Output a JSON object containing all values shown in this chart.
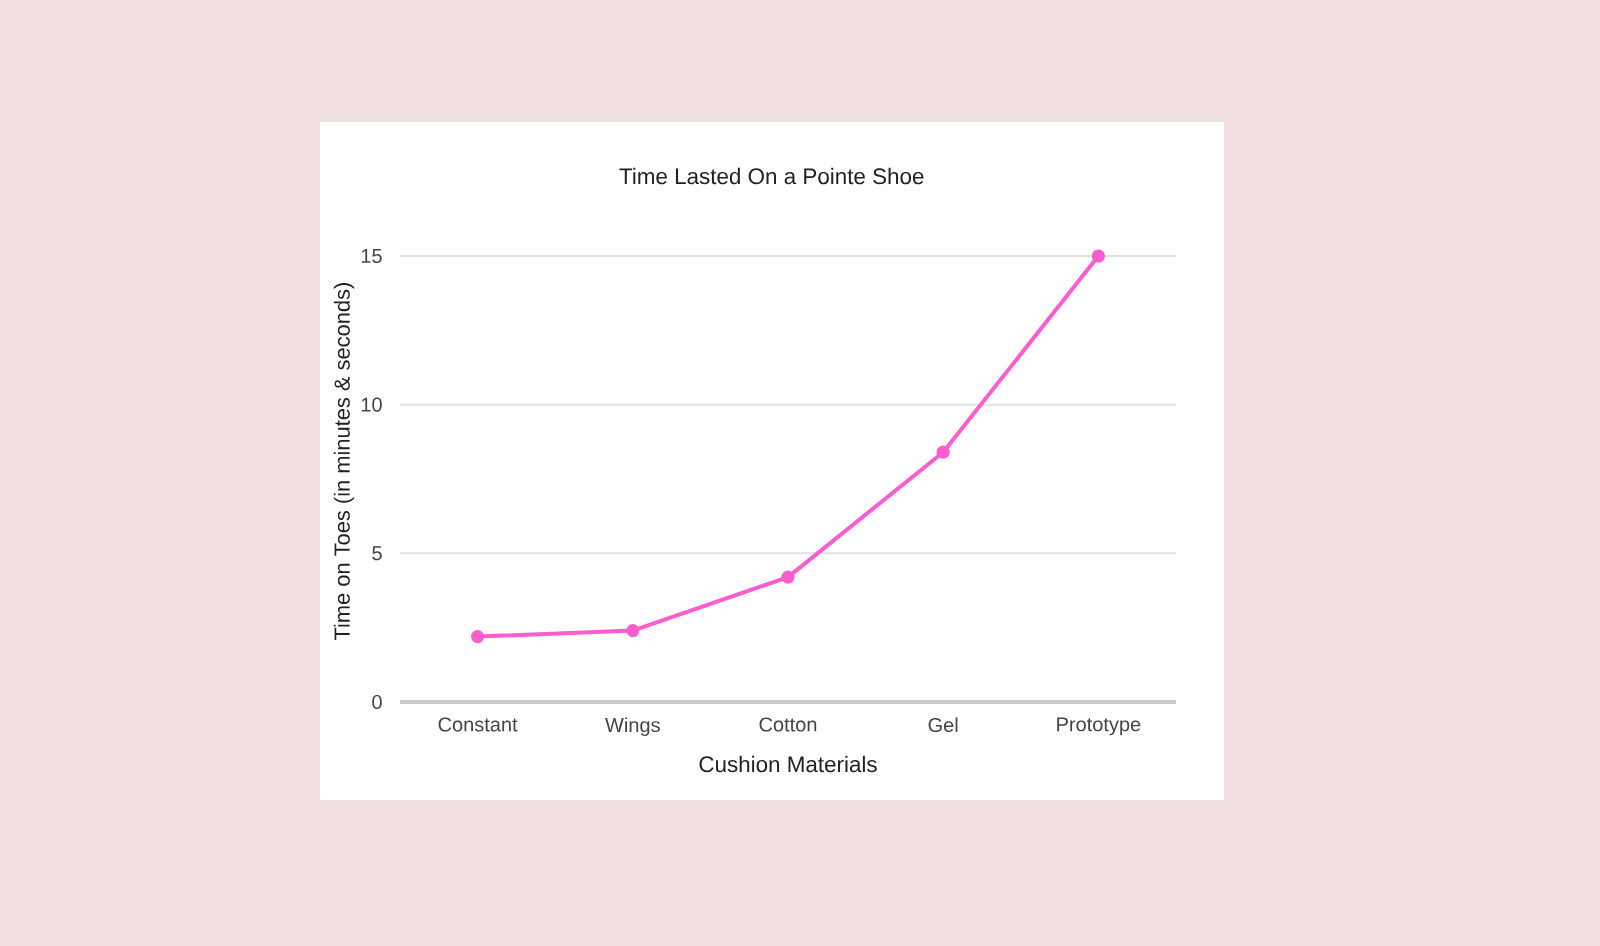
{
  "chart_data": {
    "type": "line",
    "title": "Time Lasted On a Pointe Shoe",
    "xlabel": "Cushion Materials",
    "ylabel": "Time on Toes (in minutes & seconds)",
    "categories": [
      "Constant",
      "Wings",
      "Cotton",
      "Gel",
      "Prototype"
    ],
    "series": [
      {
        "color": "#ff5ccd",
        "values": [
          2.2,
          2.4,
          4.2,
          8.4,
          15
        ]
      }
    ],
    "ylim": [
      0,
      15
    ],
    "yticks": [
      0,
      5,
      10,
      15
    ],
    "grid": "y",
    "marker": "circle",
    "line_style": "solid"
  }
}
